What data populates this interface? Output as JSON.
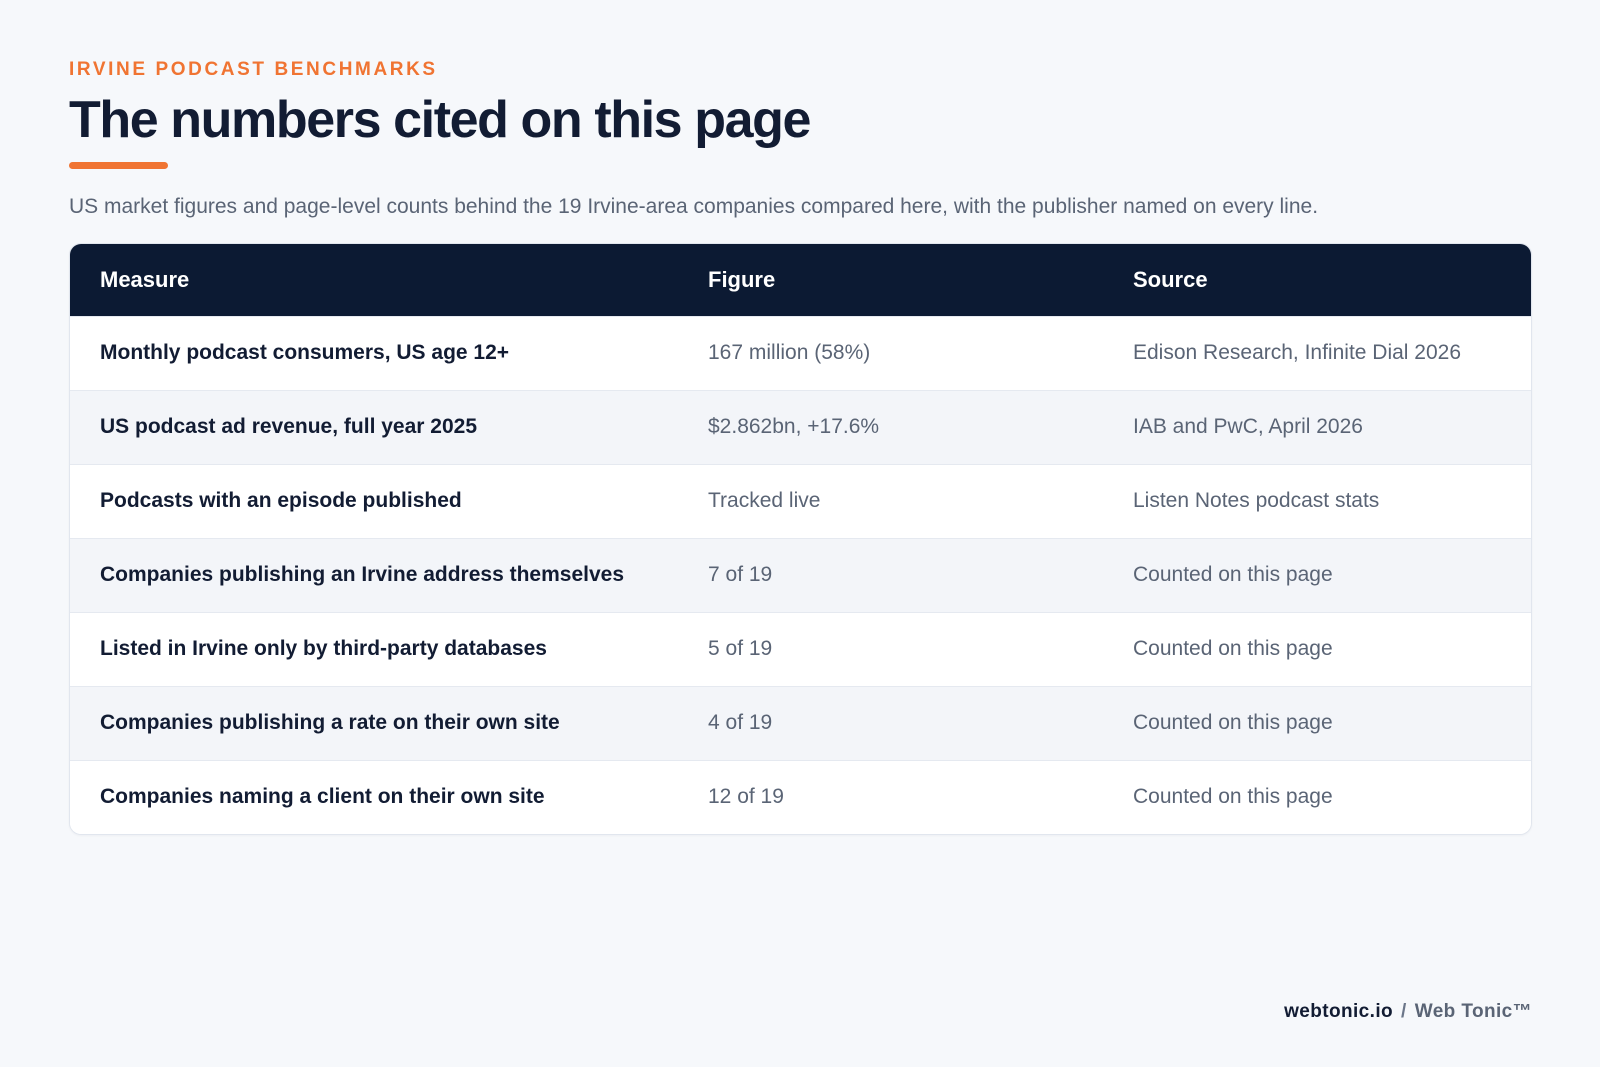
{
  "header": {
    "eyebrow": "IRVINE PODCAST BENCHMARKS",
    "title": "The numbers cited on this page",
    "subtitle": "US market figures and page-level counts behind the 19 Irvine-area companies compared here, with the publisher named on every line."
  },
  "table": {
    "columns": [
      "Measure",
      "Figure",
      "Source"
    ],
    "rows": [
      {
        "measure": "Monthly podcast consumers, US age 12+",
        "figure": "167 million (58%)",
        "source": "Edison Research, Infinite Dial 2026"
      },
      {
        "measure": "US podcast ad revenue, full year 2025",
        "figure": "$2.862bn, +17.6%",
        "source": "IAB and PwC, April 2026"
      },
      {
        "measure": "Podcasts with an episode published",
        "figure": "Tracked live",
        "source": "Listen Notes podcast stats"
      },
      {
        "measure": "Companies publishing an Irvine address themselves",
        "figure": "7 of 19",
        "source": "Counted on this page"
      },
      {
        "measure": "Listed in Irvine only by third-party databases",
        "figure": "5 of 19",
        "source": "Counted on this page"
      },
      {
        "measure": "Companies publishing a rate on their own site",
        "figure": "4 of 19",
        "source": "Counted on this page"
      },
      {
        "measure": "Companies naming a client on their own site",
        "figure": "12 of 19",
        "source": "Counted on this page"
      }
    ]
  },
  "footer": {
    "domain": "webtonic.io",
    "separator": "/",
    "brand": "Web Tonic™"
  },
  "colors": {
    "accent": "#f07432",
    "header_bg": "#0c1a33",
    "page_bg": "#f6f8fb",
    "text_dark": "#121c33",
    "text_muted": "#5a6475"
  }
}
